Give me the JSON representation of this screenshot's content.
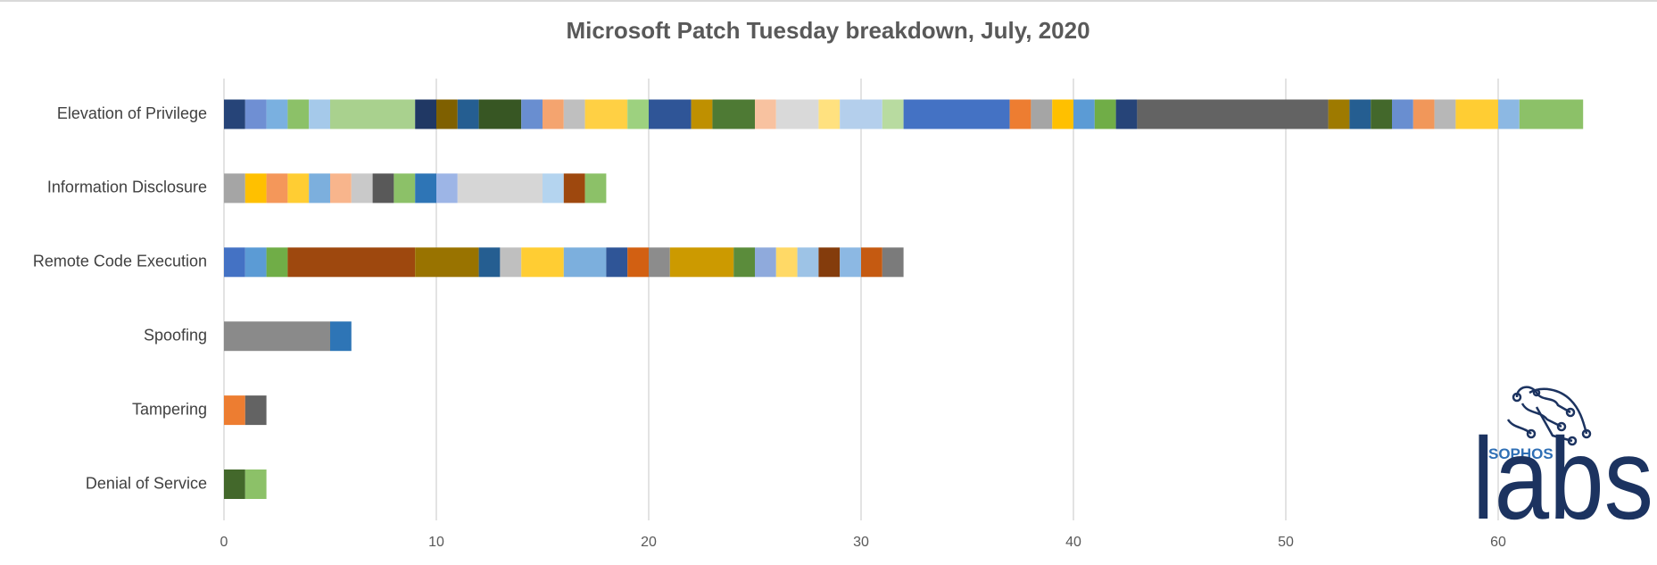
{
  "chart_data": {
    "type": "stacked-barh",
    "title": "Microsoft Patch Tuesday breakdown, July, 2020",
    "categories": [
      "Elevation of Privilege",
      "Information Disclosure",
      "Remote Code Execution",
      "Spoofing",
      "Tampering",
      "Denial of Service"
    ],
    "segments": [
      [
        {
          "value": 1,
          "color": "#264478"
        },
        {
          "value": 1,
          "color": "#6f8fd3"
        },
        {
          "value": 1,
          "color": "#7ab0e0"
        },
        {
          "value": 1,
          "color": "#8cc168"
        },
        {
          "value": 1,
          "color": "#a5c9ea"
        },
        {
          "value": 4,
          "color": "#a9d18e"
        },
        {
          "value": 1,
          "color": "#203864"
        },
        {
          "value": 1,
          "color": "#7f6000"
        },
        {
          "value": 1,
          "color": "#255e91"
        },
        {
          "value": 2,
          "color": "#375623"
        },
        {
          "value": 1,
          "color": "#698ed0"
        },
        {
          "value": 1,
          "color": "#f4a46f"
        },
        {
          "value": 1,
          "color": "#bfbfbf"
        },
        {
          "value": 2,
          "color": "#ffd044"
        },
        {
          "value": 1,
          "color": "#9dd17f"
        },
        {
          "value": 2,
          "color": "#2f5597"
        },
        {
          "value": 1,
          "color": "#bf9000"
        },
        {
          "value": 2,
          "color": "#4e7a34"
        },
        {
          "value": 1,
          "color": "#f8c2a0"
        },
        {
          "value": 2,
          "color": "#d9d9d9"
        },
        {
          "value": 1,
          "color": "#ffe17f"
        },
        {
          "value": 2,
          "color": "#b4cfec"
        },
        {
          "value": 1,
          "color": "#b8dba0"
        },
        {
          "value": 5,
          "color": "#4472c4"
        },
        {
          "value": 1,
          "color": "#ed7d31"
        },
        {
          "value": 1,
          "color": "#a5a5a5"
        },
        {
          "value": 1,
          "color": "#ffc000"
        },
        {
          "value": 1,
          "color": "#5b9bd5"
        },
        {
          "value": 1,
          "color": "#70ad47"
        },
        {
          "value": 1,
          "color": "#264478"
        },
        {
          "value": 9,
          "color": "#636363"
        },
        {
          "value": 1,
          "color": "#9e7a00"
        },
        {
          "value": 1,
          "color": "#255e91"
        },
        {
          "value": 1,
          "color": "#43682b"
        },
        {
          "value": 1,
          "color": "#698ed0"
        },
        {
          "value": 1,
          "color": "#f1975a"
        },
        {
          "value": 1,
          "color": "#b7b7b7"
        },
        {
          "value": 2,
          "color": "#ffcd33"
        },
        {
          "value": 1,
          "color": "#8cb8e3"
        },
        {
          "value": 3,
          "color": "#8cc168"
        }
      ],
      [
        {
          "value": 1,
          "color": "#a5a5a5"
        },
        {
          "value": 1,
          "color": "#ffc000"
        },
        {
          "value": 1,
          "color": "#f4975a"
        },
        {
          "value": 1,
          "color": "#ffcd33"
        },
        {
          "value": 1,
          "color": "#7cafdd"
        },
        {
          "value": 1,
          "color": "#f8b58c"
        },
        {
          "value": 1,
          "color": "#c9c9c9"
        },
        {
          "value": 1,
          "color": "#595959"
        },
        {
          "value": 1,
          "color": "#8cc168"
        },
        {
          "value": 1,
          "color": "#2e75b6"
        },
        {
          "value": 1,
          "color": "#9db5e6"
        },
        {
          "value": 4,
          "color": "#d6d6d6"
        },
        {
          "value": 1,
          "color": "#b4d4ef"
        },
        {
          "value": 1,
          "color": "#9e480e"
        },
        {
          "value": 1,
          "color": "#8cc168"
        }
      ],
      [
        {
          "value": 1,
          "color": "#4472c4"
        },
        {
          "value": 1,
          "color": "#5b9bd5"
        },
        {
          "value": 1,
          "color": "#70ad47"
        },
        {
          "value": 6,
          "color": "#9e480e"
        },
        {
          "value": 3,
          "color": "#997300"
        },
        {
          "value": 1,
          "color": "#255e91"
        },
        {
          "value": 1,
          "color": "#bfbfbf"
        },
        {
          "value": 2,
          "color": "#ffcd33"
        },
        {
          "value": 2,
          "color": "#7cafdd"
        },
        {
          "value": 1,
          "color": "#2f5597"
        },
        {
          "value": 1,
          "color": "#d26012"
        },
        {
          "value": 1,
          "color": "#8c8c8c"
        },
        {
          "value": 3,
          "color": "#cc9a00"
        },
        {
          "value": 1,
          "color": "#5b8c3b"
        },
        {
          "value": 1,
          "color": "#8faadc"
        },
        {
          "value": 1,
          "color": "#ffd966"
        },
        {
          "value": 1,
          "color": "#9dc3e6"
        },
        {
          "value": 1,
          "color": "#843c0c"
        },
        {
          "value": 1,
          "color": "#8cb8e3"
        },
        {
          "value": 1,
          "color": "#c55a11"
        },
        {
          "value": 1,
          "color": "#7b7b7b"
        }
      ],
      [
        {
          "value": 5,
          "color": "#8a8a8a"
        },
        {
          "value": 1,
          "color": "#2e75b6"
        }
      ],
      [
        {
          "value": 1,
          "color": "#ed7d31"
        },
        {
          "value": 1,
          "color": "#636363"
        }
      ],
      [
        {
          "value": 1,
          "color": "#43682b"
        },
        {
          "value": 1,
          "color": "#8cc168"
        }
      ]
    ],
    "xlim": [
      0,
      65
    ],
    "xticks": [
      0,
      10,
      20,
      30,
      40,
      50,
      60
    ],
    "grid": true
  },
  "logo": {
    "brand": "SOPHOS",
    "name": "labs"
  }
}
